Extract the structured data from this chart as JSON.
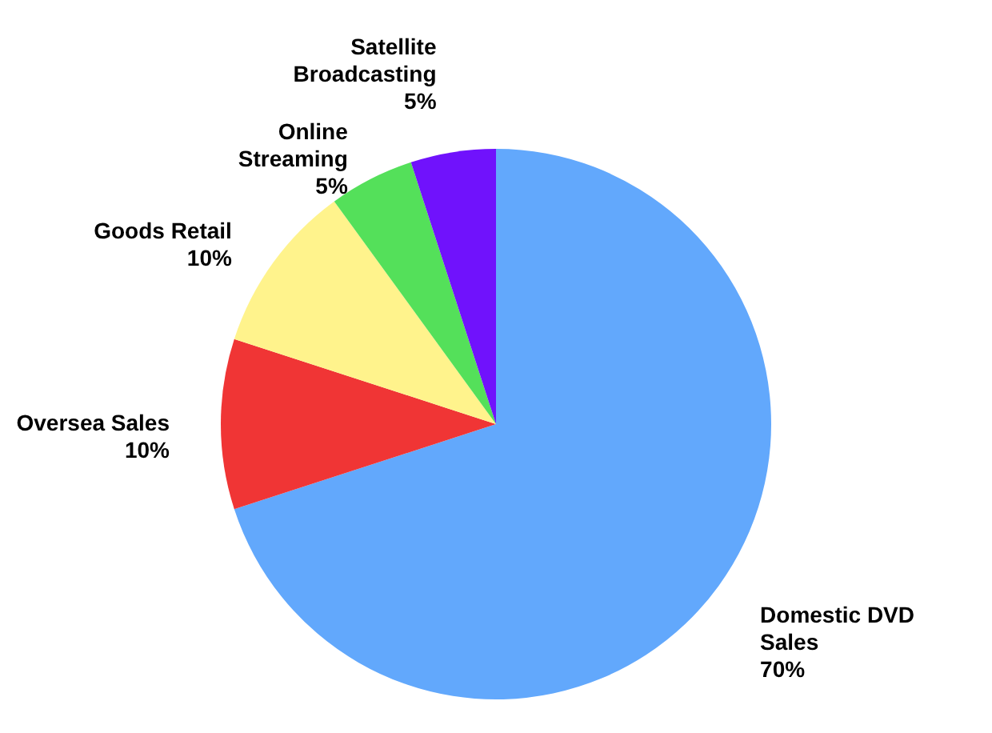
{
  "chart_data": {
    "type": "pie",
    "categories": [
      "Domestic DVD Sales",
      "Oversea Sales",
      "Goods Retail",
      "Online Streaming",
      "Satellite Broadcasting"
    ],
    "values": [
      70,
      10,
      10,
      5,
      5
    ],
    "value_labels": [
      "70%",
      "10%",
      "10%",
      "5%",
      "5%"
    ],
    "colors": [
      "#62a8fc",
      "#f03535",
      "#fff38c",
      "#54e05a",
      "#7012fc"
    ]
  }
}
